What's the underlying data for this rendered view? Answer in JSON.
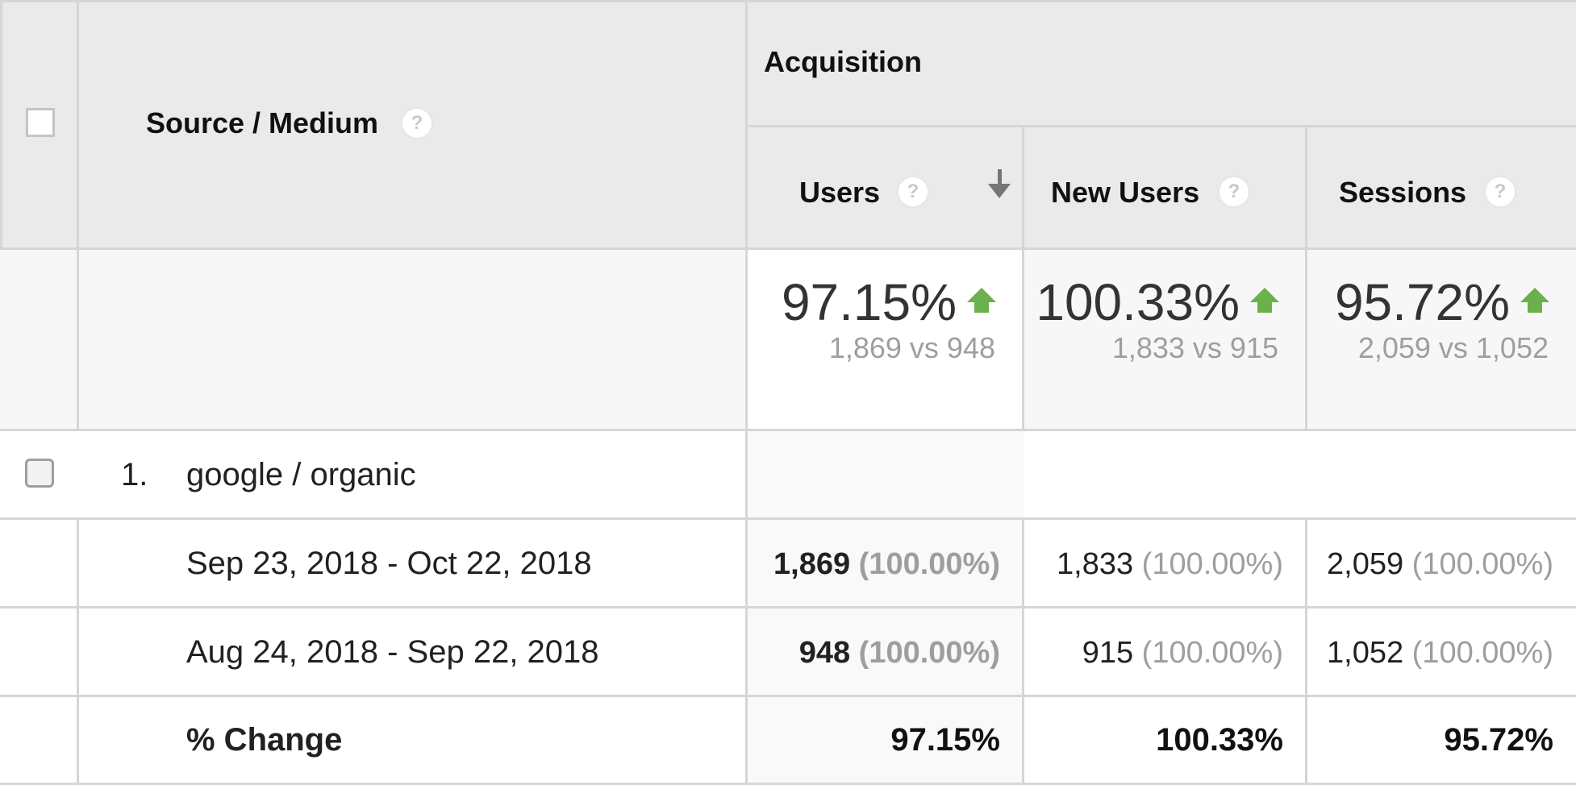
{
  "header": {
    "dimension_label": "Source / Medium",
    "group_label": "Acquisition",
    "help_glyph": "?",
    "columns": [
      {
        "label": "Users",
        "sorted": true
      },
      {
        "label": "New Users",
        "sorted": false
      },
      {
        "label": "Sessions",
        "sorted": false
      }
    ]
  },
  "summary": {
    "users": {
      "pct": "97.15%",
      "vs": "1,869 vs 948",
      "trend": "up"
    },
    "new_users": {
      "pct": "100.33%",
      "vs": "1,833 vs 915",
      "trend": "up"
    },
    "sessions": {
      "pct": "95.72%",
      "vs": "2,059 vs 1,052",
      "trend": "up"
    }
  },
  "rows": [
    {
      "index": "1.",
      "name": "google / organic",
      "periods": [
        {
          "label": "Sep 23, 2018 - Oct 22, 2018",
          "users": "1,869",
          "users_pct": "(100.00%)",
          "new_users": "1,833",
          "new_users_pct": "(100.00%)",
          "sessions": "2,059",
          "sessions_pct": "(100.00%)"
        },
        {
          "label": "Aug 24, 2018 - Sep 22, 2018",
          "users": "948",
          "users_pct": "(100.00%)",
          "new_users": "915",
          "new_users_pct": "(100.00%)",
          "sessions": "1,052",
          "sessions_pct": "(100.00%)"
        }
      ],
      "change": {
        "label": "% Change",
        "users": "97.15%",
        "new_users": "100.33%",
        "sessions": "95.72%"
      }
    }
  ],
  "colors": {
    "trend_up": "#6ab04c",
    "header_bg": "#eaeaea",
    "grid": "#d6d6d6"
  }
}
